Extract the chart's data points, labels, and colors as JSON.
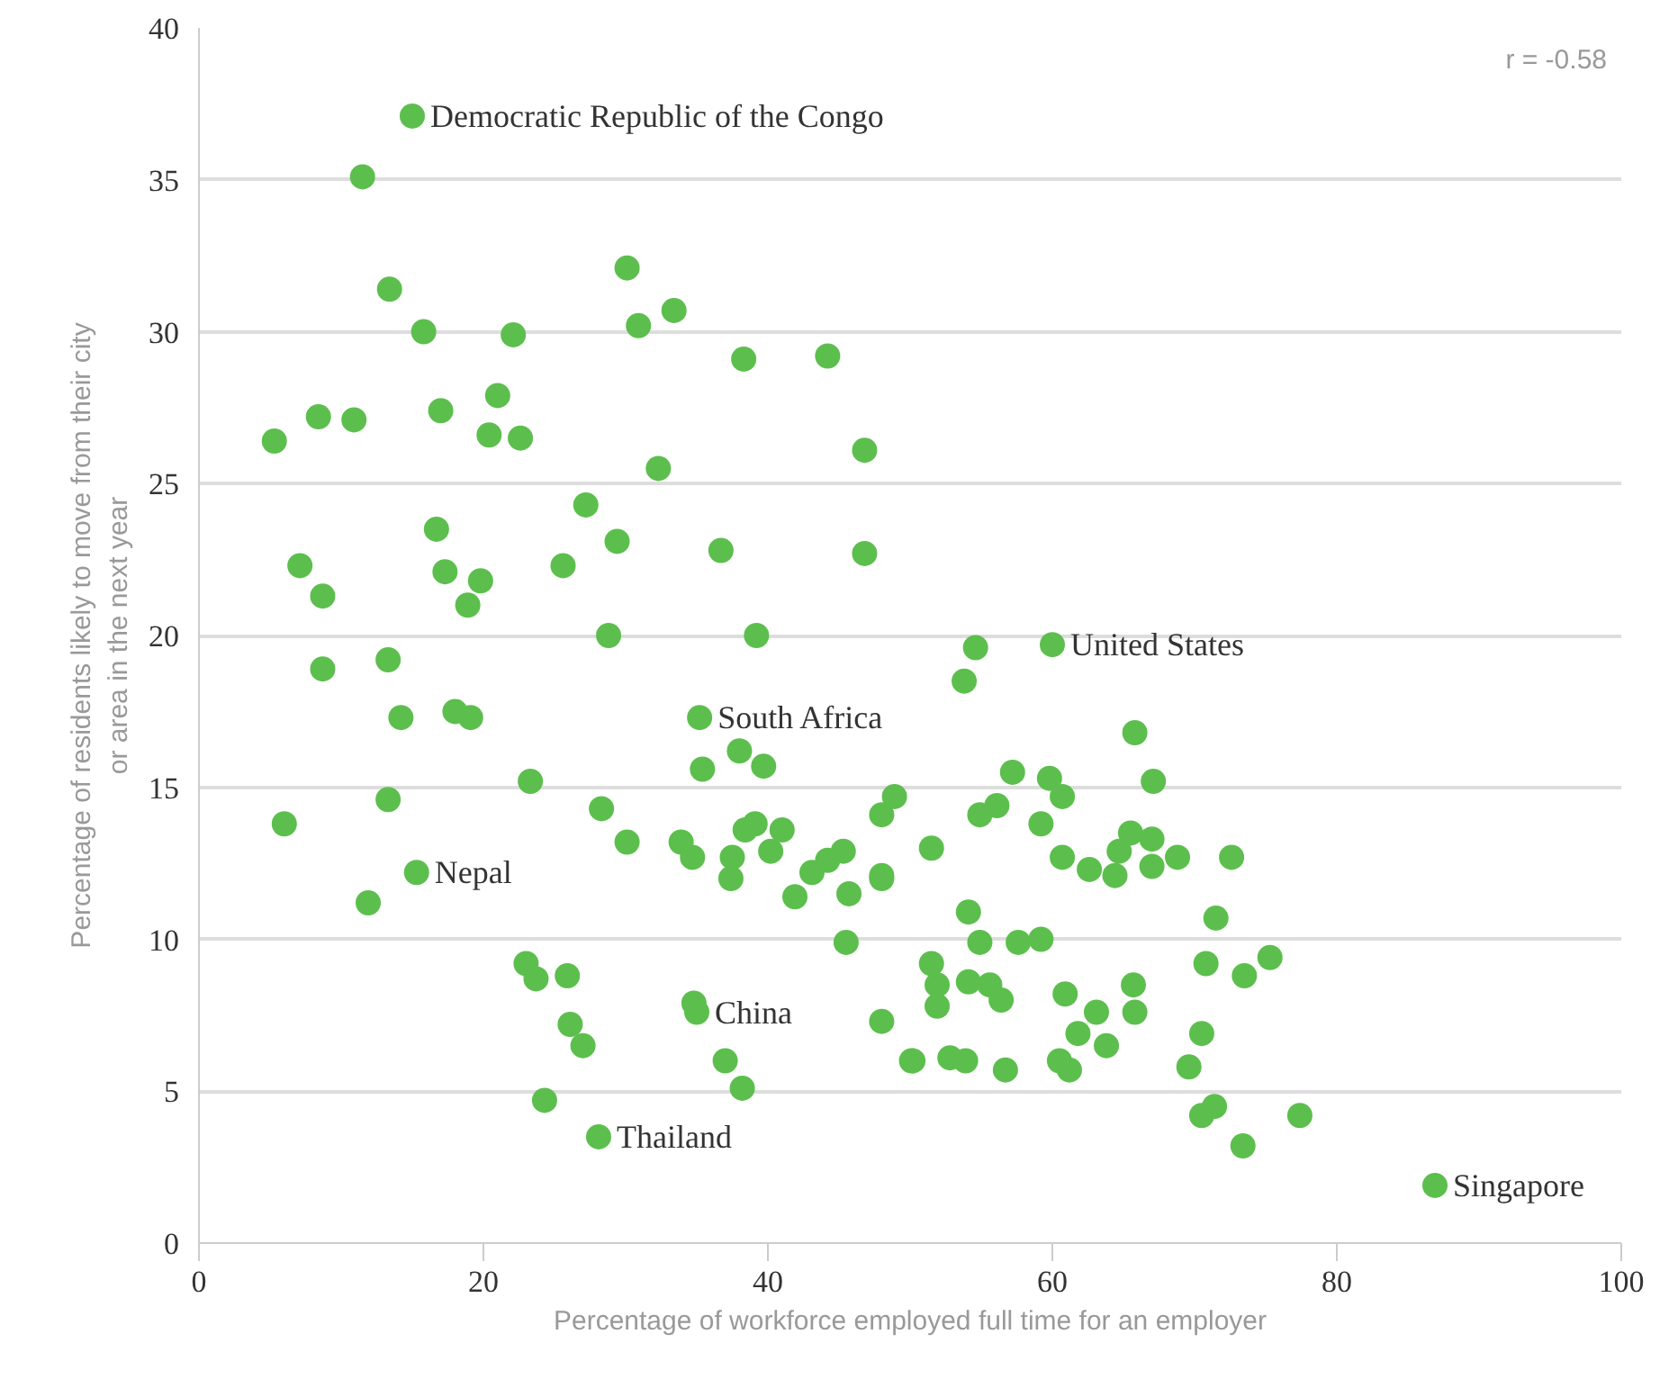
{
  "chart_data": {
    "type": "scatter",
    "xlabel": "Percentage of workforce employed full time for an employer",
    "ylabel": "Percentage of residents likely to move from their city\nor area in the next year",
    "xlim": [
      0,
      100
    ],
    "ylim": [
      0,
      40
    ],
    "xticks": [
      0,
      20,
      40,
      60,
      80,
      100
    ],
    "yticks": [
      0,
      5,
      10,
      15,
      20,
      25,
      30,
      35,
      40
    ],
    "grid": "y",
    "marker": "circle",
    "annotations": [
      "r = -0.58",
      {
        "text": "Democratic Republic of the Congo",
        "x": 15,
        "y": 37.1
      },
      {
        "text": "United States",
        "x": 60.0,
        "y": 19.7
      },
      {
        "text": "South Africa",
        "x": 35.2,
        "y": 17.3
      },
      {
        "text": "Nepal",
        "x": 15.3,
        "y": 12.2
      },
      {
        "text": "China",
        "x": 35.0,
        "y": 7.6
      },
      {
        "text": "Thailand",
        "x": 28.1,
        "y": 3.5
      },
      {
        "text": "Singapore",
        "x": 86.9,
        "y": 1.9
      }
    ],
    "series": [
      {
        "color": "#5cbf4d",
        "x": [
          15,
          11.5,
          13.4,
          15.8,
          30.1,
          30.9,
          33.4,
          22.1,
          38.3,
          44.2,
          5.3,
          8.4,
          10.9,
          17.0,
          21.0,
          20.4,
          22.6,
          32.3,
          46.8,
          27.2,
          16.7,
          29.4,
          7.1,
          17.3,
          25.6,
          36.7,
          46.8,
          8.7,
          19.8,
          18.9,
          8.7,
          28.8,
          39.2,
          13.3,
          14.2,
          18.0,
          19.1,
          35.2,
          38.0,
          35.4,
          39.7,
          23.3,
          13.3,
          28.3,
          6.0,
          30.1,
          33.9,
          34.7,
          37.5,
          38.4,
          39.1,
          40.2,
          41.0,
          37.4,
          41.9,
          43.1,
          44.2,
          45.3,
          45.7,
          48.0,
          15.3,
          11.9,
          45.5,
          23.0,
          23.7,
          25.9,
          26.1,
          27.0,
          34.8,
          35.0,
          37.0,
          38.2,
          24.3,
          28.1,
          50.1,
          54.6,
          53.8,
          60.0,
          65.8,
          57.2,
          59.8,
          60.7,
          67.1,
          48.9,
          48.0,
          54.9,
          56.1,
          59.2,
          51.5,
          48.0,
          60.7,
          62.6,
          64.4,
          64.7,
          65.5,
          67.0,
          67.0,
          68.8,
          72.6,
          71.5,
          54.1,
          54.9,
          57.6,
          59.2,
          51.5,
          51.9,
          51.9,
          54.1,
          55.6,
          56.4,
          60.9,
          63.1,
          65.7,
          65.8,
          70.8,
          73.5,
          75.3,
          70.5,
          69.6,
          61.8,
          63.8,
          60.5,
          61.2,
          56.7,
          50.2,
          52.8,
          53.9,
          48.0,
          70.5,
          71.4,
          73.4,
          77.4,
          86.9
        ],
        "values": [
          37.1,
          35.1,
          31.4,
          30.0,
          32.1,
          30.2,
          30.7,
          29.9,
          29.1,
          29.2,
          26.4,
          27.2,
          27.1,
          27.4,
          27.9,
          26.6,
          26.5,
          25.5,
          26.1,
          24.3,
          23.5,
          23.1,
          22.3,
          22.1,
          22.3,
          22.8,
          22.7,
          21.3,
          21.8,
          21.0,
          18.9,
          20.0,
          20.0,
          19.2,
          17.3,
          17.5,
          17.3,
          17.3,
          16.2,
          15.6,
          15.7,
          15.2,
          14.6,
          14.3,
          13.8,
          13.2,
          13.2,
          12.7,
          12.7,
          13.6,
          13.8,
          12.9,
          13.6,
          12.0,
          11.4,
          12.2,
          12.6,
          12.9,
          11.5,
          12.0,
          12.2,
          11.2,
          9.9,
          9.2,
          8.7,
          8.8,
          7.2,
          6.5,
          7.9,
          7.6,
          6.0,
          5.1,
          4.7,
          3.5,
          6.0,
          19.6,
          18.5,
          19.7,
          16.8,
          15.5,
          15.3,
          14.7,
          15.2,
          14.7,
          14.1,
          14.1,
          14.4,
          13.8,
          13.0,
          12.1,
          12.7,
          12.3,
          12.1,
          12.9,
          13.5,
          13.3,
          12.4,
          12.7,
          12.7,
          10.7,
          10.9,
          9.9,
          9.9,
          10.0,
          9.2,
          8.5,
          7.8,
          8.6,
          8.5,
          8.0,
          8.2,
          7.6,
          8.5,
          7.6,
          9.2,
          8.8,
          9.4,
          6.9,
          5.8,
          6.9,
          6.5,
          6.0,
          5.7,
          5.7,
          6.0,
          6.1,
          6.0,
          7.3,
          4.2,
          4.5,
          3.2,
          4.2,
          1.9
        ]
      }
    ]
  }
}
